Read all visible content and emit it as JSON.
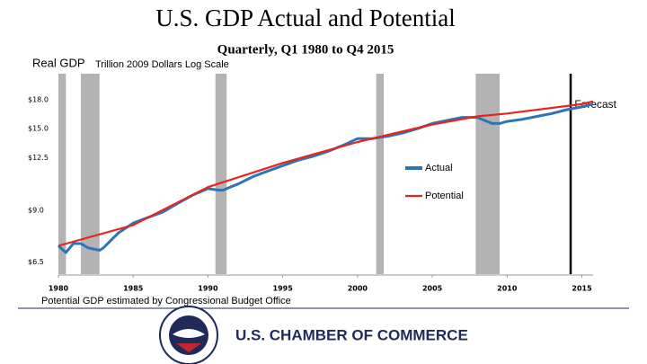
{
  "chart_data": {
    "type": "line",
    "title": "U.S. GDP Actual and Potential",
    "subtitle": "Quarterly, Q1 1980 to Q4 2015",
    "ylabel": "Real GDP",
    "ylabel_note": "Trillion 2009 Dollars Log Scale",
    "log_scale": true,
    "xlim": [
      1980,
      2015.75
    ],
    "xticks": [
      1980,
      1985,
      1990,
      1995,
      2000,
      2005,
      2010,
      2015
    ],
    "ylim": [
      6.2,
      18.6
    ],
    "yticks": [
      {
        "value": 6.5,
        "label": "$6.5"
      },
      {
        "value": 9,
        "label": "$9.0"
      },
      {
        "value": 12.5,
        "label": "$12.5"
      },
      {
        "value": 15,
        "label": "$15.0"
      },
      {
        "value": 18,
        "label": "$18.0"
      }
    ],
    "recessions": [
      [
        1980,
        1980.5
      ],
      [
        1981.5,
        1982.75
      ],
      [
        1990.5,
        1991.25
      ],
      [
        2001.25,
        2001.75
      ],
      [
        2007.9,
        2009.5
      ]
    ],
    "recession_color": "#b3b3b3",
    "forecast_x": 2014.25,
    "forecast_label": "Forecast",
    "series": [
      {
        "name": "Actual",
        "color": "#2e75b6",
        "x": [
          1980,
          1980.5,
          1981,
          1981.5,
          1982,
          1982.75,
          1983,
          1984,
          1985,
          1986,
          1987,
          1988,
          1989,
          1990,
          1990.75,
          1991,
          1992,
          1993,
          1994,
          1995,
          1996,
          1997,
          1998,
          1999,
          2000,
          2001,
          2002,
          2003,
          2004,
          2005,
          2006,
          2007,
          2008,
          2009,
          2009.5,
          2010,
          2011,
          2012,
          2013,
          2014,
          2015,
          2015.75
        ],
        "values": [
          7.2,
          6.9,
          7.3,
          7.3,
          7.1,
          7.0,
          7.1,
          7.8,
          8.3,
          8.6,
          8.9,
          9.4,
          9.9,
          10.3,
          10.2,
          10.2,
          10.6,
          11.1,
          11.5,
          11.9,
          12.3,
          12.6,
          13.0,
          13.5,
          14.1,
          14.1,
          14.3,
          14.6,
          15.0,
          15.5,
          15.8,
          16.1,
          16.1,
          15.5,
          15.5,
          15.7,
          15.9,
          16.2,
          16.5,
          16.9,
          17.2,
          17.5
        ]
      },
      {
        "name": "Potential",
        "color": "#e8241f",
        "x": [
          1980,
          1985,
          1990,
          1995,
          2000,
          2005,
          2008,
          2010,
          2015,
          2015.75
        ],
        "values": [
          7.2,
          8.2,
          10.4,
          12.1,
          13.8,
          15.4,
          16.2,
          16.5,
          17.5,
          17.8
        ]
      }
    ],
    "note": "Potential GDP estimated by Congressional Budget Office",
    "footer": "U.S. CHAMBER OF COMMERCE"
  }
}
